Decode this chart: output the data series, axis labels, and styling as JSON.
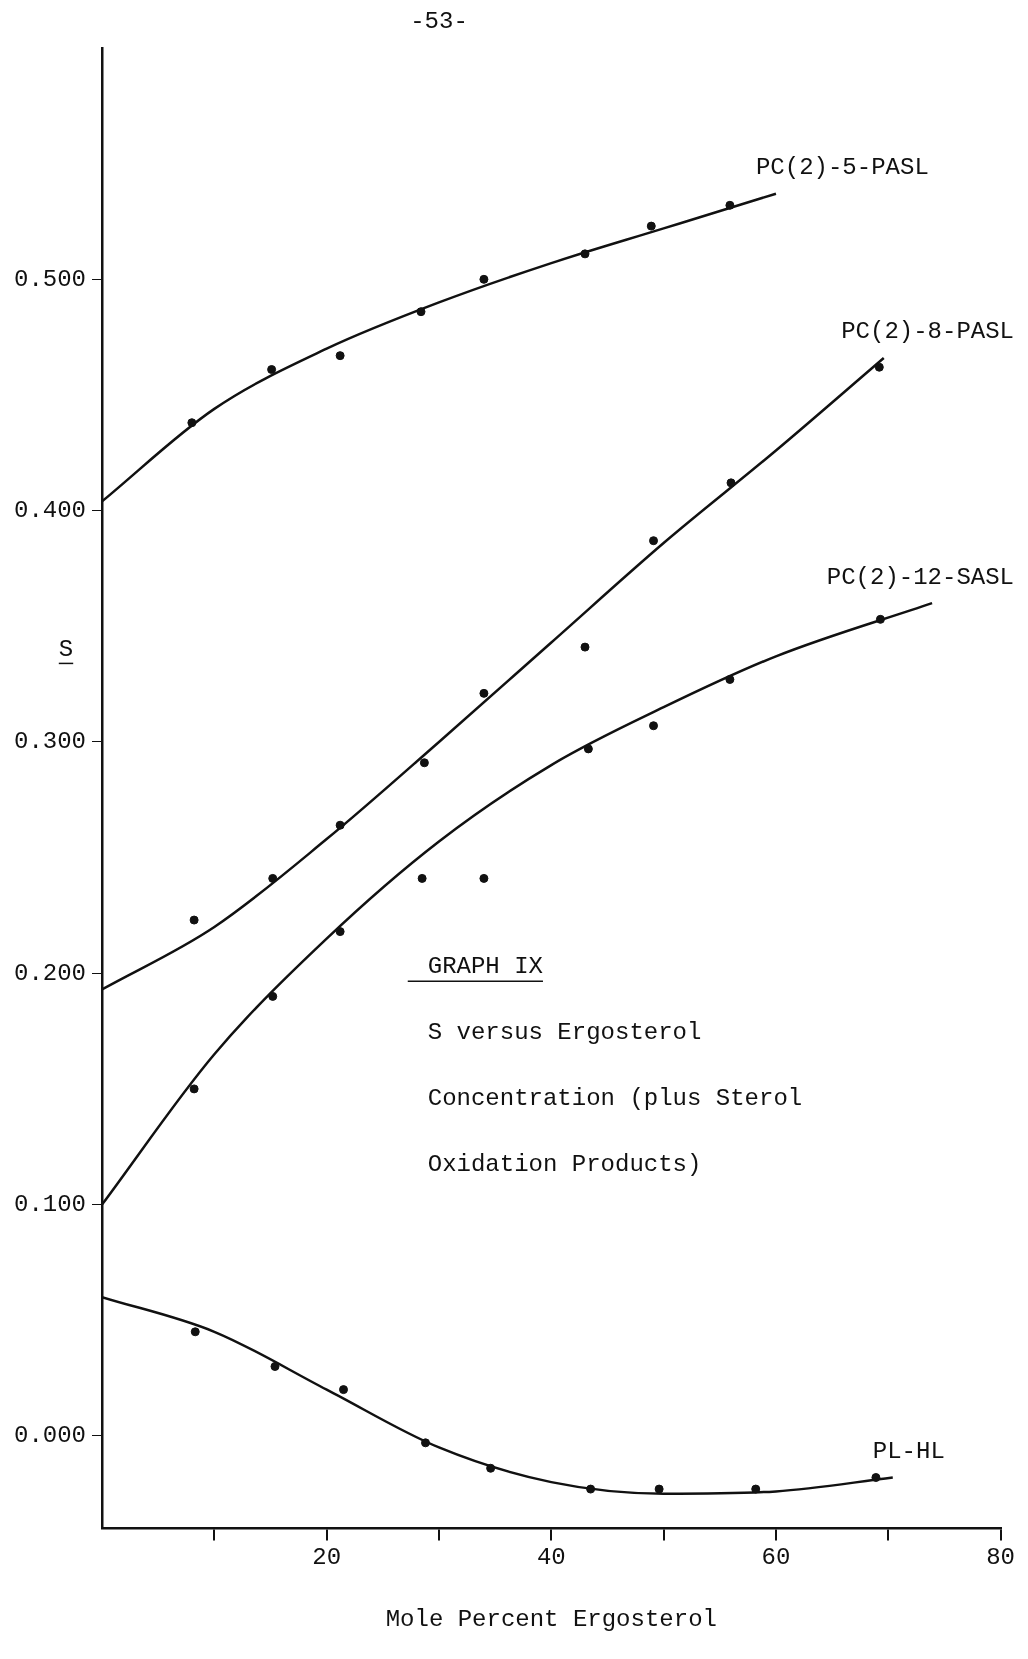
{
  "chart_data": {
    "type": "scatter",
    "title": "GRAPH IX",
    "subtitle": "S versus Ergosterol Concentration (plus Sterol Oxidation Products)",
    "xlabel": "Mole Percent Ergosterol",
    "ylabel": "S",
    "annotations": [
      "-53-"
    ],
    "xlim": [
      0,
      80
    ],
    "xticks": [
      {
        "value": 10,
        "label": null
      },
      20,
      {
        "value": 30,
        "label": null
      },
      40,
      {
        "value": 50,
        "label": null
      },
      60,
      {
        "value": 70,
        "label": null
      },
      80
    ],
    "ylim": [
      -0.04,
      0.6
    ],
    "yticks": [
      {
        "value": 0,
        "label": "0.000"
      },
      {
        "value": 0.1,
        "label": "0.100"
      },
      {
        "value": 0.2,
        "label": "0.200"
      },
      {
        "value": 0.3,
        "label": "0.300"
      },
      {
        "value": 0.4,
        "label": "0.400"
      },
      {
        "value": 0.5,
        "label": "0.500"
      }
    ],
    "grid": false,
    "legend": false,
    "marker": "circle",
    "series": [
      {
        "type": "scatter",
        "color": "#111111",
        "x": [
          8,
          15.1,
          21.2,
          28.4,
          34,
          43,
          48.9,
          55.9
        ],
        "values": [
          0.438,
          0.461,
          0.467,
          0.486,
          0.5,
          0.511,
          0.523,
          0.532
        ]
      },
      {
        "type": "line",
        "name": "PC(2)-5-PASL",
        "color": "#111111",
        "marker": "none",
        "x": [
          0,
          10,
          20,
          30,
          40,
          50,
          60
        ],
        "values": [
          0.404,
          0.444,
          0.47,
          0.49,
          0.507,
          0.522,
          0.537
        ]
      },
      {
        "type": "scatter",
        "color": "#111111",
        "x": [
          8.2,
          15.2,
          21.2,
          28.7,
          34,
          43,
          49.1,
          56,
          69.2
        ],
        "values": [
          0.223,
          0.241,
          0.264,
          0.291,
          0.321,
          0.341,
          0.387,
          0.412,
          0.462
        ]
      },
      {
        "type": "line",
        "name": "PC(2)-8-PASL",
        "color": "#111111",
        "marker": "none",
        "x": [
          0,
          10,
          20,
          30,
          40,
          50,
          60,
          69.6
        ],
        "values": [
          0.193,
          0.22,
          0.258,
          0.3,
          0.343,
          0.386,
          0.426,
          0.466
        ]
      },
      {
        "type": "scatter",
        "color": "#111111",
        "x": [
          8.2,
          15.2,
          21.2,
          28.5,
          34,
          43.3,
          49.1,
          55.9,
          69.3
        ],
        "values": [
          0.15,
          0.19,
          0.218,
          0.241,
          0.241,
          0.297,
          0.307,
          0.327,
          0.353
        ]
      },
      {
        "type": "line",
        "name": "PC(2)-12-SASL",
        "color": "#111111",
        "marker": "none",
        "x": [
          0,
          10,
          20,
          30,
          40,
          50,
          60,
          73.9
        ],
        "values": [
          0.1,
          0.165,
          0.215,
          0.257,
          0.29,
          0.315,
          0.337,
          0.36
        ]
      },
      {
        "type": "scatter",
        "color": "#111111",
        "x": [
          8.3,
          15.4,
          21.5,
          28.8,
          34.6,
          43.5,
          49.6,
          58.2,
          68.9
        ],
        "values": [
          0.045,
          0.03,
          0.02,
          -0.003,
          -0.014,
          -0.023,
          -0.023,
          -0.023,
          -0.018
        ]
      },
      {
        "type": "line",
        "name": "PL-HL",
        "color": "#111111",
        "marker": "none",
        "x": [
          0,
          10,
          20,
          30,
          40,
          50,
          60,
          70.4
        ],
        "values": [
          0.06,
          0.045,
          0.02,
          -0.005,
          -0.02,
          -0.025,
          -0.024,
          -0.018
        ]
      }
    ]
  }
}
